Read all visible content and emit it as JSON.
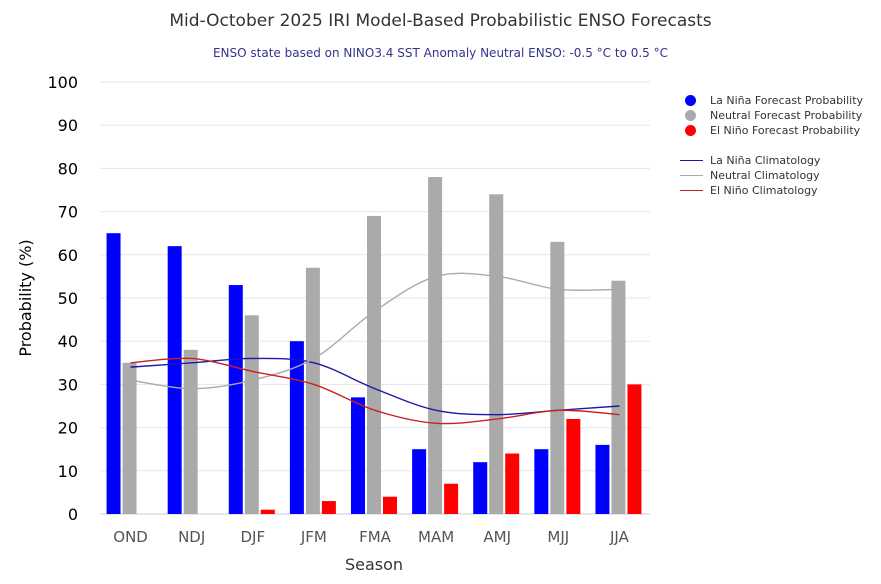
{
  "chart_data": {
    "type": "bar",
    "title": "Mid-October 2025 IRI Model-Based Probabilistic ENSO Forecasts",
    "subtitle": "ENSO state based on NINO3.4 SST Anomaly Neutral ENSO: -0.5 °C to 0.5 °C",
    "xlabel": "Season",
    "ylabel": "Probability (%)",
    "ylim": [
      0,
      100
    ],
    "yticks": [
      "0",
      "10",
      "20",
      "30",
      "40",
      "50",
      "60",
      "70",
      "80",
      "90",
      "100"
    ],
    "categories": [
      "OND",
      "NDJ",
      "DJF",
      "JFM",
      "FMA",
      "MAM",
      "AMJ",
      "MJJ",
      "JJA"
    ],
    "grid": true,
    "legend_position": "right",
    "series": [
      {
        "name": "La Niña Forecast Probability",
        "kind": "bar",
        "color": "#0000ff",
        "values": [
          65,
          62,
          53,
          40,
          27,
          15,
          12,
          15,
          16
        ]
      },
      {
        "name": "Neutral Forecast Probability",
        "kind": "bar",
        "color": "#aaaaaa",
        "values": [
          35,
          38,
          46,
          57,
          69,
          78,
          74,
          63,
          54
        ]
      },
      {
        "name": "El Niño Forecast Probability",
        "kind": "bar",
        "color": "#ff0000",
        "values": [
          0,
          0,
          1,
          3,
          4,
          7,
          14,
          22,
          30
        ]
      }
    ],
    "lines": [
      {
        "name": "La Niña Climatology",
        "kind": "line",
        "color": "#1a1aa6",
        "values": [
          34,
          35,
          36,
          35,
          29,
          24,
          23,
          24,
          25
        ]
      },
      {
        "name": "Neutral Climatology",
        "kind": "line",
        "color": "#aaaaaa",
        "values": [
          31,
          29,
          31,
          36,
          47,
          55,
          55,
          52,
          52
        ]
      },
      {
        "name": "El Niño Climatology",
        "kind": "line",
        "color": "#cc2020",
        "values": [
          35,
          36,
          33,
          30,
          24,
          21,
          22,
          24,
          23
        ]
      }
    ]
  }
}
